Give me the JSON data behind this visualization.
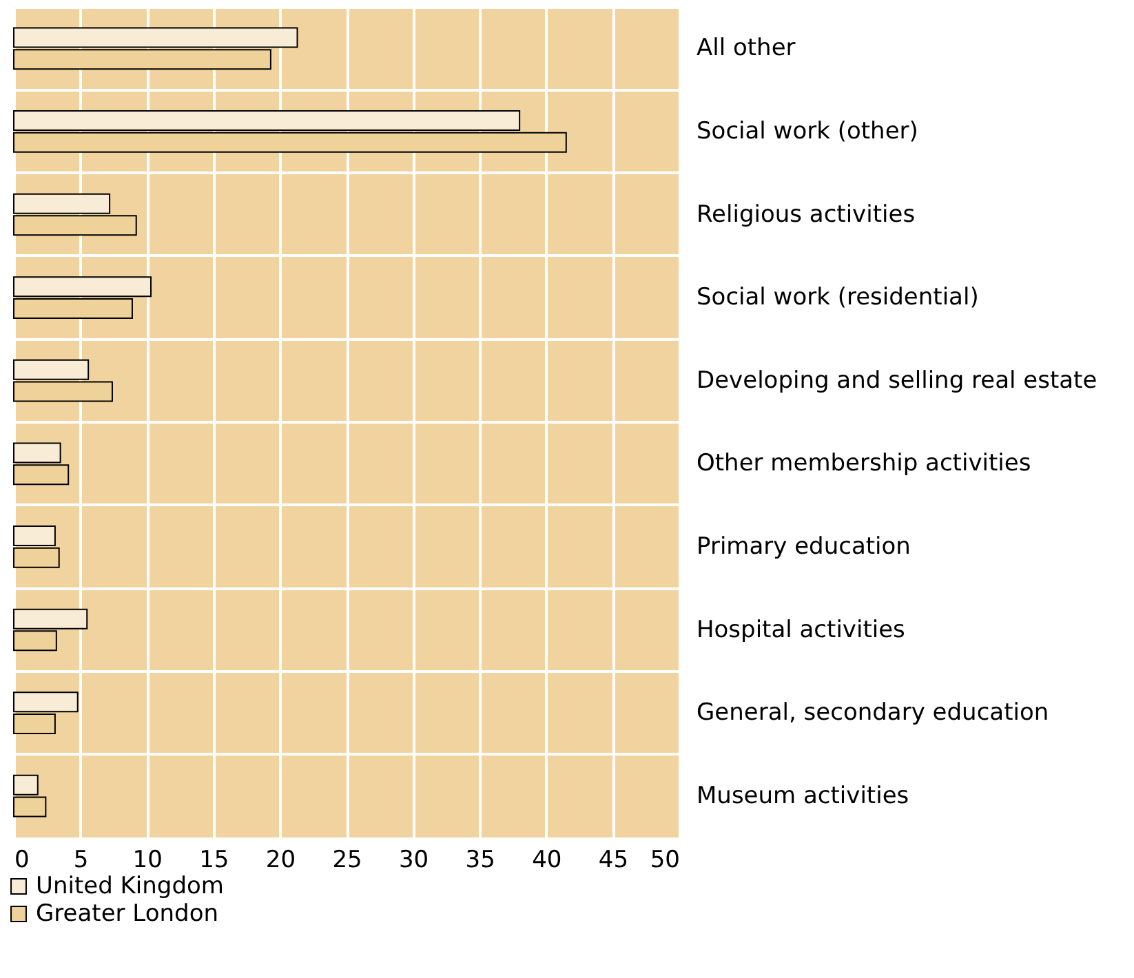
{
  "chart_data": {
    "type": "bar",
    "orientation": "horizontal",
    "categories": [
      "All other",
      "Social work (other)",
      "Religious activities",
      "Social work (residential)",
      "Developing and selling real estate",
      "Other membership activities",
      "Primary education",
      "Hospital activities",
      "General, secondary education",
      "Museum activities"
    ],
    "series": [
      {
        "name": "United Kingdom",
        "color": "#f8ecd6",
        "values": [
          21.3,
          38.0,
          7.2,
          10.3,
          5.6,
          3.5,
          3.1,
          5.5,
          4.8,
          1.8
        ]
      },
      {
        "name": "Greater London",
        "color": "#efd29a",
        "values": [
          19.3,
          41.5,
          9.2,
          8.9,
          7.4,
          4.1,
          3.4,
          3.2,
          3.1,
          2.4
        ]
      }
    ],
    "xlim": [
      0,
      50
    ],
    "xticks": [
      0,
      5,
      10,
      15,
      20,
      25,
      30,
      35,
      40,
      45,
      50
    ],
    "grid": true,
    "legend": "bottom left"
  }
}
